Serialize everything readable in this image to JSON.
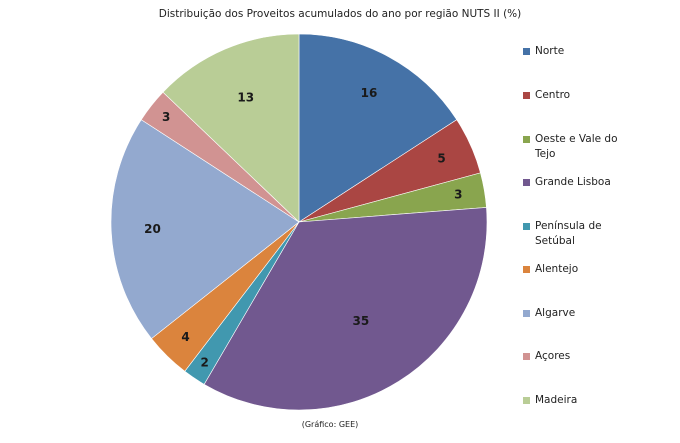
{
  "chart_data": {
    "type": "pie",
    "title": "Distribuição dos Proveitos acumulados do ano por região NUTS II (%)",
    "categories": [
      "Norte",
      "Centro",
      "Oeste e Vale do Tejo",
      "Grande Lisboa",
      "Península de Setúbal",
      "Alentejo",
      "Algarve",
      "Açores",
      "Madeira"
    ],
    "values": [
      16,
      5,
      3,
      35,
      2,
      4,
      20,
      3,
      13
    ],
    "data_labels": [
      "16",
      "5",
      "3",
      "35",
      "2",
      "4",
      "20",
      "3",
      "13"
    ],
    "colors": [
      "#4572A7",
      "#AA4643",
      "#89A54E",
      "#71588F",
      "#4198AF",
      "#DB843D",
      "#93A9CF",
      "#D19392",
      "#B9CD96"
    ],
    "legend_position": "right"
  },
  "footer": {
    "source": "(Gráfico: GEE)"
  }
}
